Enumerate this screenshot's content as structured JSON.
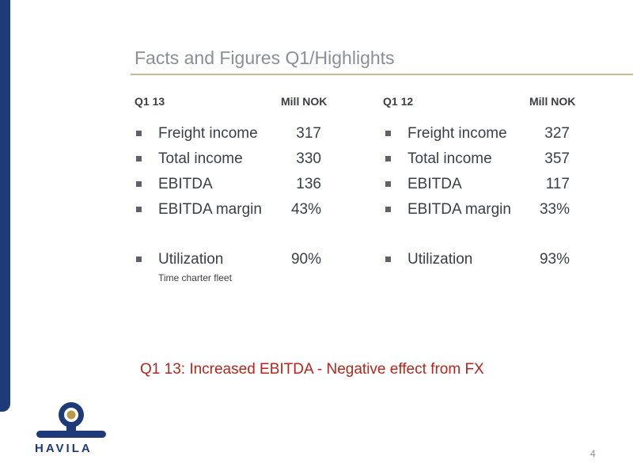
{
  "title": "Facts and Figures Q1/Highlights",
  "left": {
    "period": "Q1 13",
    "unit": "Mill NOK",
    "rows": [
      {
        "label": "Freight income",
        "value": "317"
      },
      {
        "label": "Total income",
        "value": "330"
      },
      {
        "label": "EBITDA",
        "value": "136"
      },
      {
        "label": "EBITDA margin",
        "value": "43%"
      },
      {
        "label": "Utilization",
        "value": "90%"
      }
    ],
    "utilization_note": "Time charter fleet"
  },
  "right": {
    "period": "Q1 12",
    "unit": "Mill NOK",
    "rows": [
      {
        "label": "Freight income",
        "value": "327"
      },
      {
        "label": "Total income",
        "value": "357"
      },
      {
        "label": "EBITDA",
        "value": "117"
      },
      {
        "label": "EBITDA margin",
        "value": "33%"
      },
      {
        "label": "Utilization",
        "value": "93%"
      }
    ]
  },
  "highlight": "Q1 13: Increased EBITDA - Negative effect from FX",
  "logo_text": "HAVILA",
  "page_number": "4",
  "colors": {
    "brand_blue": "#1f3a78",
    "accent_gold": "#c9b98e",
    "highlight_red": "#b5261d"
  }
}
